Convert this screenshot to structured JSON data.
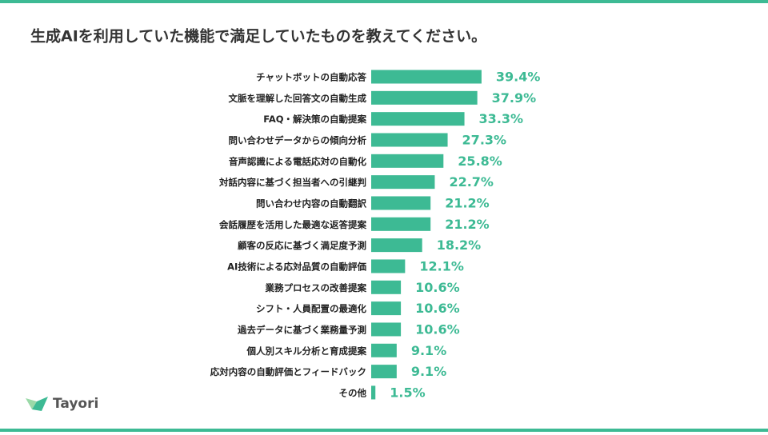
{
  "chart_data": {
    "type": "bar",
    "orientation": "horizontal",
    "title": "生成AIを利用していた機能で満足していたものを教えてください。",
    "categories": [
      "チャットボットの自動応答",
      "文脈を理解した回答文の自動生成",
      "FAQ・解決策の自動提案",
      "問い合わせデータからの傾向分析",
      "音声認識による電話応対の自動化",
      "対話内容に基づく担当者への引継判",
      "問い合わせ内容の自動翻訳",
      "会話履歴を活用した最適な返答提案",
      "顧客の反応に基づく満足度予測",
      "AI技術による応対品質の自動評価",
      "業務プロセスの改善提案",
      "シフト・人員配置の最適化",
      "過去データに基づく業務量予測",
      "個人別スキル分析と育成提案",
      "応対内容の自動評価とフィードバック",
      "その他"
    ],
    "values": [
      39.4,
      37.9,
      33.3,
      27.3,
      25.8,
      22.7,
      21.2,
      21.2,
      18.2,
      12.1,
      10.6,
      10.6,
      10.6,
      9.1,
      9.1,
      1.5
    ],
    "value_labels": [
      "39.4%",
      "37.9%",
      "33.3%",
      "27.3%",
      "25.8%",
      "22.7%",
      "21.2%",
      "21.2%",
      "18.2%",
      "12.1%",
      "10.6%",
      "10.6%",
      "10.6%",
      "9.1%",
      "9.1%",
      "1.5%"
    ],
    "color": "#3dba94"
  },
  "logo": "Tayori"
}
